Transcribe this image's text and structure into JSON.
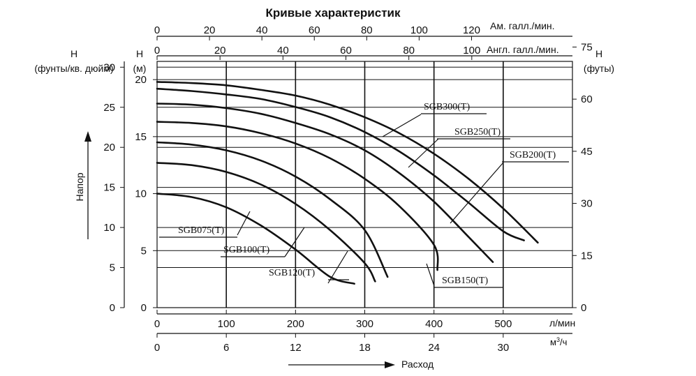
{
  "chart_data": {
    "type": "line",
    "title": "Кривые характеристик",
    "x_axes": {
      "top_us": {
        "label": "Ам. галл./мин.",
        "ticks": [
          0,
          20,
          40,
          60,
          80,
          100,
          120
        ],
        "tick_labels": [
          "0",
          "20",
          "40",
          "60",
          "80",
          "100",
          "120"
        ]
      },
      "top_imp": {
        "label": "Англ. галл./мин.",
        "ticks": [
          0,
          20,
          40,
          60,
          80,
          100
        ],
        "tick_labels": [
          "0",
          "20",
          "40",
          "60",
          "80",
          "100"
        ]
      },
      "bottom_lmin": {
        "label": "л/мин",
        "ticks": [
          0,
          100,
          200,
          300,
          400,
          500
        ],
        "tick_labels": [
          "0",
          "100",
          "200",
          "300",
          "400",
          "500"
        ]
      },
      "bottom_m3h": {
        "label": "м³/ч",
        "label_main": "м",
        "label_sup": "3",
        "label_tail": "/ч",
        "ticks": [
          0,
          6,
          12,
          18,
          24,
          30
        ],
        "tick_labels": [
          "0",
          "6",
          "12",
          "18",
          "24",
          "30"
        ]
      }
    },
    "y_axes": {
      "psi": {
        "label_line1": "H",
        "label_line2": "(фунты/кв. дюйм)",
        "ticks": [
          0,
          5,
          10,
          15,
          20,
          25,
          30
        ],
        "tick_labels": [
          "0",
          "5",
          "10",
          "15",
          "20",
          "25",
          "30"
        ]
      },
      "m": {
        "label_line1": "H",
        "label_line2": "(м)",
        "ticks": [
          0,
          5,
          10,
          15,
          20
        ],
        "tick_labels": [
          "0",
          "5",
          "10",
          "15",
          "20"
        ],
        "range": [
          0,
          21.6
        ]
      },
      "ft": {
        "label_line1": "H",
        "label_line2": "(футы)",
        "ticks": [
          0,
          15,
          30,
          45,
          60,
          75
        ],
        "tick_labels": [
          "0",
          "15",
          "30",
          "45",
          "60",
          "75"
        ]
      }
    },
    "xlim_lmin": [
      0,
      600
    ],
    "head_axis_label": "Напор",
    "flow_axis_label": "Расход",
    "series": [
      {
        "name": "SGB075(T)",
        "x": [
          0,
          50,
          100,
          150,
          200,
          250,
          285
        ],
        "y": [
          10.0,
          9.7,
          8.8,
          7.2,
          5.1,
          2.7,
          2.1
        ]
      },
      {
        "name": "SGB100(T)",
        "x": [
          0,
          50,
          100,
          150,
          200,
          250,
          300,
          315
        ],
        "y": [
          12.7,
          12.5,
          11.9,
          10.8,
          9.1,
          6.8,
          3.9,
          2.3
        ]
      },
      {
        "name": "SGB120(T)",
        "x": [
          0,
          50,
          100,
          150,
          200,
          250,
          300,
          333
        ],
        "y": [
          14.5,
          14.3,
          13.8,
          12.9,
          11.5,
          9.5,
          6.8,
          2.7
        ]
      },
      {
        "name": "SGB150(T)",
        "x": [
          0,
          50,
          100,
          150,
          200,
          250,
          300,
          350,
          400,
          405
        ],
        "y": [
          16.3,
          16.2,
          15.9,
          15.3,
          14.4,
          13.1,
          11.3,
          8.9,
          5.5,
          3.3
        ]
      },
      {
        "name": "SGB200(T)",
        "x": [
          0,
          50,
          100,
          150,
          200,
          250,
          300,
          350,
          400,
          450,
          485
        ],
        "y": [
          17.9,
          17.8,
          17.5,
          17.0,
          16.2,
          15.2,
          13.8,
          11.8,
          9.3,
          6.2,
          4.0
        ]
      },
      {
        "name": "SGB250(T)",
        "x": [
          0,
          50,
          100,
          150,
          200,
          250,
          300,
          350,
          400,
          450,
          500,
          530
        ],
        "y": [
          19.2,
          19.0,
          18.7,
          18.3,
          17.6,
          16.7,
          15.4,
          13.7,
          11.6,
          9.2,
          6.7,
          5.9
        ]
      },
      {
        "name": "SGB300(T)",
        "x": [
          0,
          50,
          100,
          150,
          200,
          250,
          300,
          350,
          400,
          450,
          500,
          550
        ],
        "y": [
          19.8,
          19.7,
          19.5,
          19.1,
          18.6,
          17.8,
          16.7,
          15.3,
          13.5,
          11.3,
          8.7,
          5.7
        ]
      }
    ],
    "legend": "inline curve labels",
    "grid": true
  }
}
